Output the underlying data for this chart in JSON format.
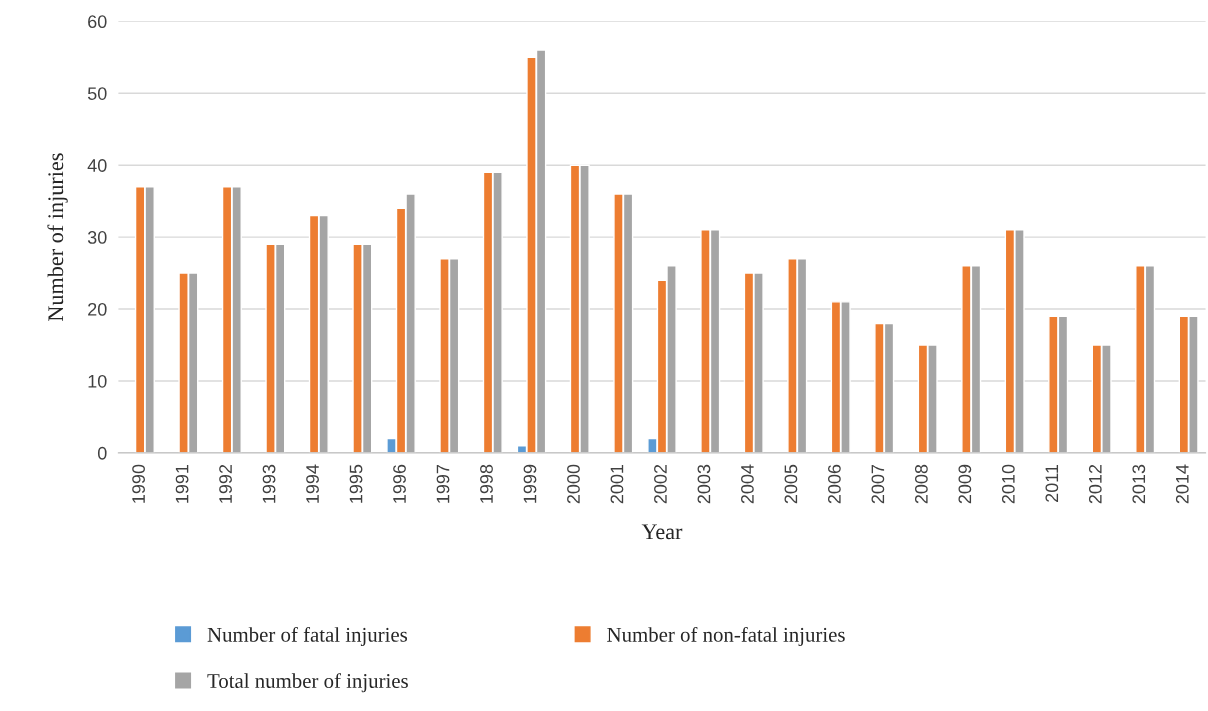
{
  "chart_data": {
    "type": "bar",
    "xlabel": "Year",
    "ylabel": "Number of injuries",
    "categories": [
      "1990",
      "1991",
      "1992",
      "1993",
      "1994",
      "1995",
      "1996",
      "1997",
      "1998",
      "1999",
      "2000",
      "2001",
      "2002",
      "2003",
      "2004",
      "2005",
      "2006",
      "2007",
      "2008",
      "2009",
      "2010",
      "2011",
      "2012",
      "2013",
      "2014"
    ],
    "series": [
      {
        "name": "Number of fatal injuries",
        "color": "#5b9bd5",
        "values": [
          0,
          0,
          0,
          0,
          0,
          0,
          2,
          0,
          0,
          1,
          0,
          0,
          2,
          0,
          0,
          0,
          0,
          0,
          0,
          0,
          0,
          0,
          0,
          0,
          0
        ]
      },
      {
        "name": "Number of non-fatal injuries",
        "color": "#ed7d31",
        "values": [
          37,
          25,
          37,
          29,
          33,
          29,
          34,
          27,
          39,
          55,
          40,
          36,
          24,
          31,
          25,
          27,
          21,
          18,
          15,
          26,
          31,
          19,
          15,
          26,
          19
        ]
      },
      {
        "name": "Total number of injuries",
        "color": "#a5a5a5",
        "values": [
          37,
          25,
          37,
          29,
          33,
          29,
          36,
          27,
          39,
          56,
          40,
          36,
          26,
          31,
          25,
          27,
          21,
          18,
          15,
          26,
          31,
          19,
          15,
          26,
          19
        ]
      }
    ],
    "ylim": [
      0,
      60
    ],
    "yticks": [
      0,
      10,
      20,
      30,
      40,
      50,
      60
    ],
    "grid": "y",
    "legend": "bottom"
  }
}
